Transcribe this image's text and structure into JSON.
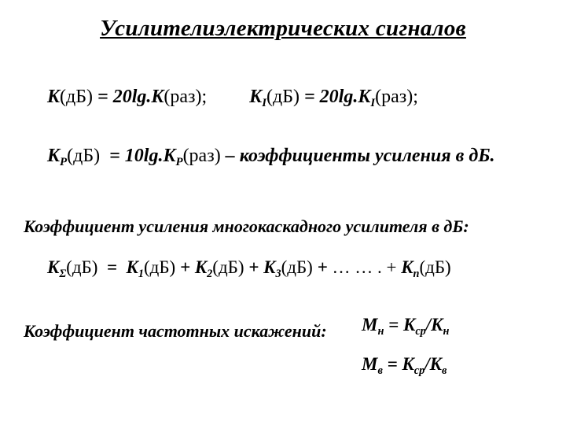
{
  "title": "Усилителиэлектрических сигналов",
  "eq": {
    "K": "K",
    "dB": "(дБ)",
    "eq": " = ",
    "twenty": "20",
    "ten": "10",
    "lg": "lg.",
    "raz": "(раз);",
    "razNoSemi": "(раз)",
    "KI": "K",
    "I": "I",
    "KP": "K",
    "P": "P",
    "desc": " – коэффициенты усиления в дБ.",
    "subSigma": "Σ",
    "plus": " + ",
    "K1": "K",
    "s1": "1",
    "K2": "K",
    "s2": "2",
    "K3": "K",
    "s3": "3",
    "dots": " … … . + ",
    "Kn": "K",
    "sn": "n",
    "Mn": "M",
    "sub_n": "н",
    "Mv": "M",
    "sub_v": "в",
    "Kcp": "K",
    "sub_cp": "ср",
    "Kh": "K",
    "sub_h": "н",
    "Kv": "K",
    "sub_vv": "в",
    "slash": "/"
  },
  "subheading1": "Коэффициент усиления многокаскадного усилителя в дБ:",
  "subheading2": "Коэффициент частотных искажений:"
}
